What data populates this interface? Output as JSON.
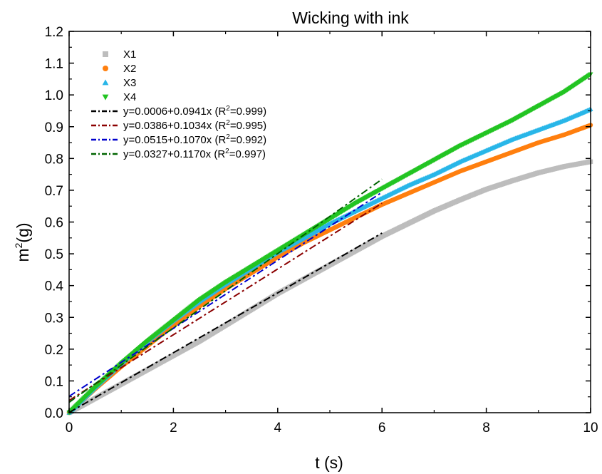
{
  "chart_data": {
    "type": "scatter",
    "title": "Wicking with ink",
    "xlabel": "t (s)",
    "ylabel_base": "m",
    "ylabel_sup": "2",
    "ylabel_tail": "(g)",
    "xlim": [
      0,
      10
    ],
    "ylim": [
      0,
      1.2
    ],
    "x_ticks": [
      "0",
      "2",
      "4",
      "6",
      "8",
      "10"
    ],
    "y_ticks": [
      "0.0",
      "0.1",
      "0.2",
      "0.3",
      "0.4",
      "0.5",
      "0.6",
      "0.7",
      "0.8",
      "0.9",
      "1.0",
      "1.1",
      "1.2"
    ],
    "grid": false,
    "legend_position": "top-left",
    "series": [
      {
        "name": "X1",
        "marker": "square",
        "color": "#bdbdbd",
        "x": [
          0,
          0.5,
          1,
          1.5,
          2,
          2.5,
          3,
          3.5,
          4,
          4.5,
          5,
          5.5,
          6,
          6.5,
          7,
          7.5,
          8,
          8.5,
          9,
          9.5,
          10
        ],
        "y": [
          0.0,
          0.045,
          0.09,
          0.135,
          0.18,
          0.225,
          0.275,
          0.325,
          0.375,
          0.42,
          0.465,
          0.51,
          0.555,
          0.595,
          0.635,
          0.67,
          0.703,
          0.73,
          0.755,
          0.775,
          0.79
        ]
      },
      {
        "name": "X2",
        "marker": "circle",
        "color": "#ff7f0e",
        "x": [
          0,
          0.5,
          1,
          1.5,
          2,
          2.5,
          3,
          3.5,
          4,
          4.5,
          5,
          5.5,
          6,
          6.5,
          7,
          7.5,
          8,
          8.5,
          9,
          9.5,
          10
        ],
        "y": [
          0.0,
          0.075,
          0.145,
          0.21,
          0.275,
          0.335,
          0.39,
          0.44,
          0.49,
          0.535,
          0.575,
          0.615,
          0.655,
          0.69,
          0.725,
          0.76,
          0.79,
          0.82,
          0.85,
          0.875,
          0.905
        ]
      },
      {
        "name": "X3",
        "marker": "triangle-up",
        "color": "#29b6e8",
        "x": [
          0,
          0.5,
          1,
          1.5,
          2,
          2.5,
          3,
          3.5,
          4,
          4.5,
          5,
          5.5,
          6,
          6.5,
          7,
          7.5,
          8,
          8.5,
          9,
          9.5,
          10
        ],
        "y": [
          0.0,
          0.08,
          0.155,
          0.225,
          0.29,
          0.35,
          0.405,
          0.455,
          0.505,
          0.55,
          0.595,
          0.635,
          0.675,
          0.715,
          0.75,
          0.79,
          0.825,
          0.86,
          0.89,
          0.92,
          0.955
        ]
      },
      {
        "name": "X4",
        "marker": "triangle-down",
        "color": "#22c422",
        "x": [
          0,
          0.5,
          1,
          1.5,
          2,
          2.5,
          3,
          3.5,
          4,
          4.5,
          5,
          5.5,
          6,
          6.5,
          7,
          7.5,
          8,
          8.5,
          9,
          9.5,
          10
        ],
        "y": [
          0.0,
          0.08,
          0.155,
          0.225,
          0.29,
          0.355,
          0.41,
          0.46,
          0.51,
          0.56,
          0.61,
          0.66,
          0.705,
          0.75,
          0.795,
          0.84,
          0.88,
          0.92,
          0.965,
          1.01,
          1.065
        ]
      }
    ],
    "fits": [
      {
        "label_main": "y=0.0006+0.0941x (R",
        "label_sup": "2",
        "label_tail": "=0.999)",
        "intercept": 0.0006,
        "slope": 0.0941,
        "x_range": [
          0,
          6
        ],
        "color": "#000000"
      },
      {
        "label_main": "y=0.0386+0.1034x (R",
        "label_sup": "2",
        "label_tail": "=0.995)",
        "intercept": 0.0386,
        "slope": 0.1034,
        "x_range": [
          0,
          6
        ],
        "color": "#8b0000"
      },
      {
        "label_main": "y=0.0515+0.1070x (R",
        "label_sup": "2",
        "label_tail": "=0.992)",
        "intercept": 0.0515,
        "slope": 0.107,
        "x_range": [
          0,
          6
        ],
        "color": "#0000cd"
      },
      {
        "label_main": "y=0.0327+0.1170x (R",
        "label_sup": "2",
        "label_tail": "=0.997)",
        "intercept": 0.0327,
        "slope": 0.117,
        "x_range": [
          0,
          6
        ],
        "color": "#006400"
      }
    ]
  }
}
